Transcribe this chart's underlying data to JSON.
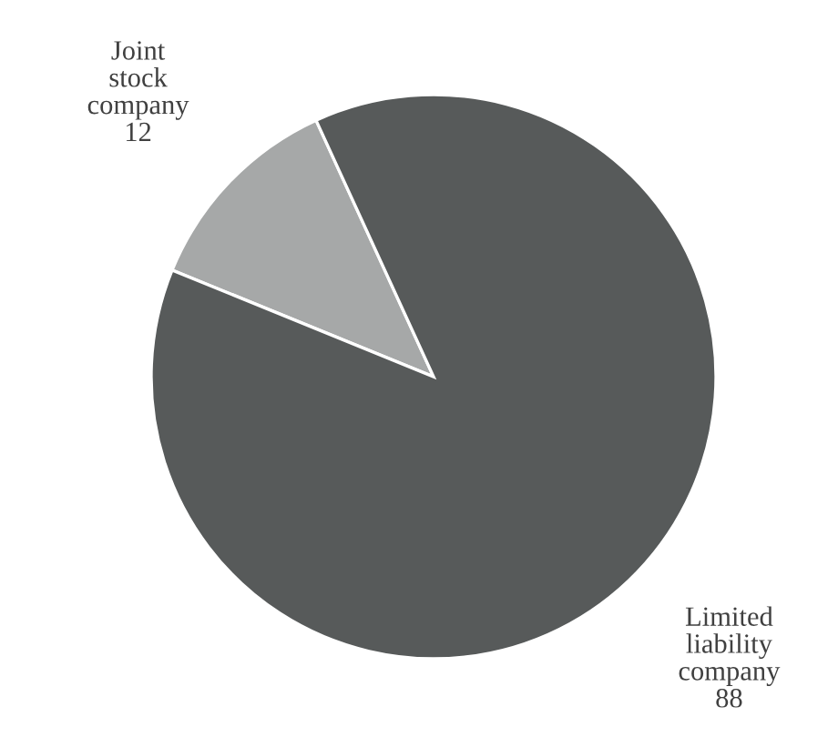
{
  "chart_data": {
    "type": "pie",
    "categories": [
      "Joint stock company",
      "Limited liability company"
    ],
    "values": [
      12,
      88
    ],
    "colors": [
      "#a6a8a8",
      "#575a5a"
    ],
    "data_labels": true
  }
}
